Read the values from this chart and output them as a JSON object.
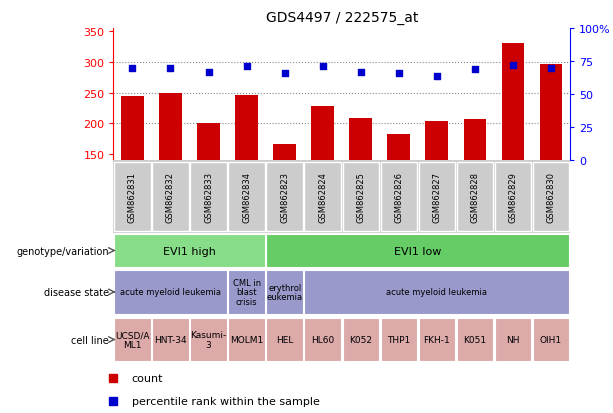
{
  "title": "GDS4497 / 222575_at",
  "samples": [
    "GSM862831",
    "GSM862832",
    "GSM862833",
    "GSM862834",
    "GSM862823",
    "GSM862824",
    "GSM862825",
    "GSM862826",
    "GSM862827",
    "GSM862828",
    "GSM862829",
    "GSM862830"
  ],
  "counts": [
    245,
    250,
    200,
    247,
    167,
    228,
    209,
    183,
    204,
    207,
    330,
    297
  ],
  "percentiles": [
    70,
    70,
    67,
    71,
    66,
    71,
    67,
    66,
    64,
    69,
    72,
    70
  ],
  "ylim_left": [
    140,
    355
  ],
  "ylim_right": [
    0,
    100
  ],
  "yticks_left": [
    150,
    200,
    250,
    300,
    350
  ],
  "yticks_right": [
    0,
    25,
    50,
    75,
    100
  ],
  "bar_color": "#cc0000",
  "dot_color": "#0000cc",
  "grid_color": "#888888",
  "plot_bg": "#ffffff",
  "xticklabel_bg": "#d0d0d0",
  "genotype_row": {
    "label": "genotype/variation",
    "groups": [
      {
        "text": "EVI1 high",
        "start": 0,
        "end": 4,
        "color": "#88dd88"
      },
      {
        "text": "EVI1 low",
        "start": 4,
        "end": 12,
        "color": "#66cc66"
      }
    ]
  },
  "disease_row": {
    "label": "disease state",
    "groups": [
      {
        "text": "acute myeloid leukemia",
        "start": 0,
        "end": 3,
        "color": "#9999cc"
      },
      {
        "text": "CML in\nblast\ncrisis",
        "start": 3,
        "end": 4,
        "color": "#9999cc"
      },
      {
        "text": "erythrol\neukemia",
        "start": 4,
        "end": 5,
        "color": "#9999cc"
      },
      {
        "text": "acute myeloid leukemia",
        "start": 5,
        "end": 12,
        "color": "#9999cc"
      }
    ]
  },
  "cell_row": {
    "label": "cell line",
    "groups": [
      {
        "text": "UCSD/A\nML1",
        "start": 0,
        "end": 1,
        "color": "#ddaaaa"
      },
      {
        "text": "HNT-34",
        "start": 1,
        "end": 2,
        "color": "#ddaaaa"
      },
      {
        "text": "Kasumi-\n3",
        "start": 2,
        "end": 3,
        "color": "#ddaaaa"
      },
      {
        "text": "MOLM1",
        "start": 3,
        "end": 4,
        "color": "#ddaaaa"
      },
      {
        "text": "HEL",
        "start": 4,
        "end": 5,
        "color": "#ddaaaa"
      },
      {
        "text": "HL60",
        "start": 5,
        "end": 6,
        "color": "#ddaaaa"
      },
      {
        "text": "K052",
        "start": 6,
        "end": 7,
        "color": "#ddaaaa"
      },
      {
        "text": "THP1",
        "start": 7,
        "end": 8,
        "color": "#ddaaaa"
      },
      {
        "text": "FKH-1",
        "start": 8,
        "end": 9,
        "color": "#ddaaaa"
      },
      {
        "text": "K051",
        "start": 9,
        "end": 10,
        "color": "#ddaaaa"
      },
      {
        "text": "NH",
        "start": 10,
        "end": 11,
        "color": "#ddaaaa"
      },
      {
        "text": "OIH1",
        "start": 11,
        "end": 12,
        "color": "#ddaaaa"
      }
    ]
  },
  "legend_items": [
    {
      "color": "#cc0000",
      "label": "count"
    },
    {
      "color": "#0000cc",
      "label": "percentile rank within the sample"
    }
  ]
}
